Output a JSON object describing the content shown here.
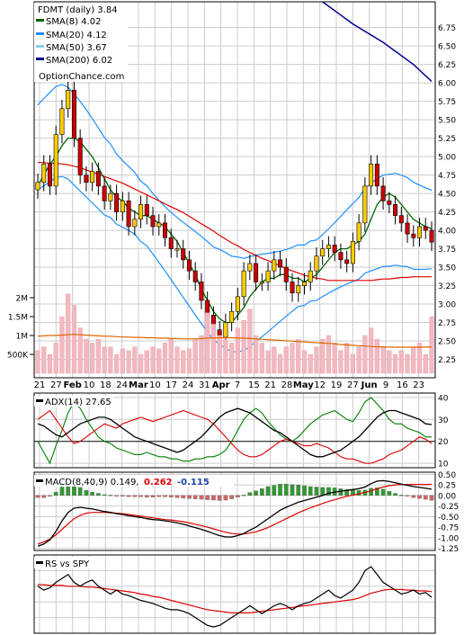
{
  "chart_data": {
    "type": "line",
    "title": "FDMT (daily) 3.84",
    "watermark": "OptionChance.com",
    "x_ticks": [
      "21",
      "27",
      "Feb",
      "10",
      "18",
      "24",
      "Mar",
      "10",
      "17",
      "24",
      "31",
      "Apr",
      "7",
      "15",
      "21",
      "28",
      "May",
      "12",
      "19",
      "27",
      "Jun",
      "9",
      "16",
      "23"
    ],
    "bold_ticks": [
      "Feb",
      "Mar",
      "Apr",
      "May",
      "Jun"
    ],
    "price_panel": {
      "ylim": [
        2.0,
        7.1
      ],
      "y_ticks": [
        "6.75",
        "6.50",
        "6.25",
        "6.00",
        "5.75",
        "5.50",
        "5.25",
        "5.00",
        "4.75",
        "4.50",
        "4.25",
        "4.00",
        "3.75",
        "3.50",
        "3.25",
        "3.00",
        "2.75",
        "2.50",
        "2.25"
      ],
      "legend": [
        {
          "label": "SMA(8)",
          "value": "4.02",
          "color": "#006400"
        },
        {
          "label": "SMA(20)",
          "value": "4.12",
          "color": "#1e90ff"
        },
        {
          "label": "SMA(50)",
          "value": "3.67",
          "color": "#87ceeb"
        },
        {
          "label": "SMA(200)",
          "value": "6.02",
          "color": "#00008b"
        }
      ],
      "close_points": [
        4.65,
        4.9,
        4.6,
        5.3,
        5.65,
        5.9,
        5.25,
        4.75,
        4.65,
        4.8,
        4.6,
        4.4,
        4.5,
        4.25,
        4.4,
        4.05,
        4.15,
        4.35,
        4.2,
        4.05,
        4.1,
        3.9,
        3.75,
        3.75,
        3.6,
        3.45,
        3.3,
        3.05,
        2.85,
        2.65,
        2.55,
        2.75,
        2.9,
        3.1,
        3.45,
        3.55,
        3.3,
        3.3,
        3.45,
        3.6,
        3.5,
        3.3,
        3.15,
        3.25,
        3.3,
        3.45,
        3.65,
        3.75,
        3.8,
        3.7,
        3.6,
        3.55,
        3.85,
        4.1,
        4.6,
        4.9,
        4.6,
        4.4,
        4.35,
        4.2,
        4.1,
        3.95,
        3.9,
        4.05,
        4.0,
        3.84
      ],
      "sma8": [
        4.6,
        4.75,
        4.9,
        5.0,
        5.15,
        5.25,
        5.25,
        5.2,
        5.1,
        5.0,
        4.85,
        4.7,
        4.55,
        4.45,
        4.4,
        4.3,
        4.25,
        4.2,
        4.2,
        4.15,
        4.1,
        4.05,
        3.95,
        3.85,
        3.7,
        3.55,
        3.4,
        3.2,
        3.05,
        2.9,
        2.8,
        2.75,
        2.75,
        2.85,
        2.95,
        3.1,
        3.2,
        3.3,
        3.35,
        3.35,
        3.4,
        3.4,
        3.35,
        3.35,
        3.3,
        3.35,
        3.4,
        3.5,
        3.6,
        3.7,
        3.75,
        3.75,
        3.8,
        3.85,
        3.95,
        4.15,
        4.35,
        4.45,
        4.5,
        4.45,
        4.35,
        4.25,
        4.15,
        4.1,
        4.05,
        4.02
      ],
      "sma20": [
        5.2,
        5.25,
        5.3,
        5.35,
        5.35,
        5.3,
        5.2,
        5.1,
        5.0,
        4.9,
        4.8,
        4.7,
        4.65,
        4.55,
        4.5,
        4.45,
        4.4,
        4.3,
        4.25,
        4.15,
        4.05,
        3.95,
        3.85,
        3.75,
        3.65,
        3.55,
        3.45,
        3.35,
        3.25,
        3.15,
        3.1,
        3.05,
        3.0,
        3.0,
        3.0,
        3.05,
        3.1,
        3.15,
        3.2,
        3.25,
        3.3,
        3.35,
        3.4,
        3.45,
        3.45,
        3.5,
        3.5,
        3.55,
        3.6,
        3.65,
        3.7,
        3.75,
        3.8,
        3.85,
        3.95,
        4.0,
        4.05,
        4.1,
        4.12,
        4.15,
        4.15,
        4.15,
        4.12,
        4.12,
        4.12,
        4.12
      ],
      "sma50": [
        3.92,
        3.94,
        3.95,
        3.97,
        3.98,
        3.99,
        3.99,
        3.99,
        3.98,
        3.97,
        3.96,
        3.95,
        3.94,
        3.93,
        3.92,
        3.9,
        3.88,
        3.86,
        3.84,
        3.82,
        3.8,
        3.78,
        3.76,
        3.74,
        3.72,
        3.69,
        3.66,
        3.63,
        3.6,
        3.57,
        3.53,
        3.5,
        3.47,
        3.45,
        3.42,
        3.4,
        3.38,
        3.36,
        3.35,
        3.33,
        3.32,
        3.3,
        3.29,
        3.28,
        3.27,
        3.27,
        3.27,
        3.28,
        3.28,
        3.3,
        3.32,
        3.34,
        3.36,
        3.38,
        3.4,
        3.42,
        3.45,
        3.48,
        3.5,
        3.53,
        3.56,
        3.58,
        3.61,
        3.63,
        3.65,
        3.67
      ],
      "sma200": [
        {
          "i": 47,
          "v": 7.1
        },
        {
          "i": 52,
          "v": 6.8
        },
        {
          "i": 57,
          "v": 6.55
        },
        {
          "i": 62,
          "v": 6.25
        },
        {
          "i": 65,
          "v": 6.02
        }
      ]
    },
    "volume_panel": {
      "y_ticks": [
        "2M",
        "1.5M",
        "1M",
        "500K"
      ],
      "tick_values": [
        2000000,
        1500000,
        1000000,
        500000
      ],
      "ylim": [
        0,
        2500000
      ],
      "values": [
        600000,
        700000,
        500000,
        800000,
        1500000,
        2100000,
        1800000,
        1200000,
        900000,
        800000,
        900000,
        700000,
        700000,
        500000,
        650000,
        600000,
        700000,
        500000,
        600000,
        700000,
        650000,
        800000,
        900000,
        700000,
        600000,
        650000,
        900000,
        1000000,
        1600000,
        1300000,
        1000000,
        900000,
        800000,
        1200000,
        1400000,
        1700000,
        1000000,
        800000,
        600000,
        700000,
        500000,
        700000,
        800000,
        900000,
        600000,
        500000,
        700000,
        900000,
        1000000,
        800000,
        600000,
        800000,
        500000,
        700000,
        1000000,
        1200000,
        900000,
        700000,
        600000,
        500000,
        600000,
        500000,
        700000,
        800000,
        500000,
        1500000
      ],
      "avg": [
        980000,
        990000,
        1000000,
        1000000,
        1010000,
        1020000,
        1030000,
        1020000,
        1010000,
        1000000,
        990000,
        980000,
        980000,
        970000,
        960000,
        960000,
        950000,
        950000,
        940000,
        940000,
        930000,
        930000,
        920000,
        920000,
        910000,
        910000,
        910000,
        920000,
        930000,
        930000,
        940000,
        940000,
        940000,
        930000,
        930000,
        920000,
        910000,
        900000,
        890000,
        880000,
        870000,
        860000,
        850000,
        840000,
        830000,
        820000,
        810000,
        800000,
        790000,
        780000,
        760000,
        750000,
        740000,
        730000,
        720000,
        710000,
        700000,
        700000,
        690000,
        690000,
        690000,
        690000,
        690000,
        690000,
        690000,
        700000
      ]
    },
    "adx_panel": {
      "label": "ADX(14) 27.65",
      "ylim": [
        8,
        42
      ],
      "y_ticks": [
        "40",
        "30",
        "20",
        "10"
      ],
      "adx": [
        28,
        27,
        25,
        23,
        22,
        24,
        26,
        28,
        29,
        30,
        31,
        31,
        30,
        28,
        26,
        24,
        22,
        21,
        20,
        19,
        18,
        17,
        16,
        15,
        16,
        18,
        20,
        22,
        25,
        28,
        31,
        33,
        34,
        35,
        34,
        33,
        31,
        29,
        27,
        25,
        24,
        22,
        20,
        18,
        16,
        14,
        13,
        13,
        14,
        15,
        16,
        18,
        20,
        22,
        25,
        28,
        31,
        33,
        34,
        34,
        33,
        32,
        31,
        30,
        28,
        27.65
      ],
      "plus_di": [
        20,
        15,
        10,
        18,
        25,
        33,
        38,
        35,
        30,
        26,
        22,
        20,
        19,
        17,
        16,
        15,
        14,
        14,
        15,
        14,
        13,
        13,
        12,
        12,
        11,
        11,
        12,
        12,
        13,
        13,
        14,
        16,
        20,
        25,
        30,
        33,
        35,
        33,
        29,
        26,
        23,
        21,
        20,
        22,
        25,
        28,
        30,
        32,
        33,
        34,
        32,
        30,
        29,
        33,
        38,
        40,
        37,
        34,
        30,
        28,
        28,
        26,
        25,
        24,
        22,
        22
      ],
      "minus_di": [
        30,
        32,
        34,
        30,
        26,
        22,
        19,
        20,
        22,
        24,
        26,
        28,
        27,
        26,
        28,
        29,
        30,
        31,
        30,
        29,
        30,
        31,
        32,
        33,
        34,
        33,
        32,
        31,
        30,
        28,
        25,
        22,
        19,
        16,
        14,
        13,
        13,
        14,
        16,
        18,
        20,
        21,
        20,
        19,
        18,
        18,
        19,
        18,
        17,
        15,
        13,
        12,
        12,
        11,
        10,
        10,
        11,
        12,
        14,
        15,
        16,
        18,
        20,
        22,
        21,
        19
      ]
    },
    "macd_panel": {
      "label": "MACD(8,40,9)",
      "macd_value": "0.149,",
      "signal_value": "0.262",
      "hist_value": "-0.115",
      "ylim": [
        -1.3,
        0.55
      ],
      "y_ticks": [
        "0.50",
        "0.25",
        "0.00",
        "-0.25",
        "-0.50",
        "-0.75",
        "-1.00",
        "-1.25"
      ],
      "tick_values": [
        0.5,
        0.25,
        0.0,
        -0.25,
        -0.5,
        -0.75,
        -1.0,
        -1.25
      ],
      "macd": [
        -1.2,
        -1.15,
        -1.05,
        -0.85,
        -0.6,
        -0.4,
        -0.3,
        -0.28,
        -0.3,
        -0.32,
        -0.35,
        -0.38,
        -0.4,
        -0.43,
        -0.45,
        -0.48,
        -0.5,
        -0.52,
        -0.55,
        -0.57,
        -0.58,
        -0.6,
        -0.62,
        -0.65,
        -0.68,
        -0.72,
        -0.76,
        -0.8,
        -0.85,
        -0.9,
        -0.95,
        -0.98,
        -0.98,
        -0.95,
        -0.9,
        -0.82,
        -0.75,
        -0.65,
        -0.55,
        -0.45,
        -0.35,
        -0.28,
        -0.22,
        -0.16,
        -0.12,
        -0.08,
        -0.04,
        0.0,
        0.05,
        0.08,
        0.1,
        0.12,
        0.14,
        0.16,
        0.2,
        0.28,
        0.34,
        0.35,
        0.33,
        0.3,
        0.27,
        0.24,
        0.21,
        0.19,
        0.17,
        0.149
      ],
      "signal": [
        -1.15,
        -1.1,
        -1.03,
        -0.93,
        -0.8,
        -0.67,
        -0.55,
        -0.47,
        -0.42,
        -0.4,
        -0.4,
        -0.4,
        -0.41,
        -0.42,
        -0.43,
        -0.45,
        -0.47,
        -0.49,
        -0.51,
        -0.53,
        -0.55,
        -0.57,
        -0.58,
        -0.6,
        -0.62,
        -0.65,
        -0.68,
        -0.71,
        -0.75,
        -0.79,
        -0.83,
        -0.87,
        -0.9,
        -0.91,
        -0.91,
        -0.89,
        -0.86,
        -0.81,
        -0.76,
        -0.69,
        -0.62,
        -0.55,
        -0.48,
        -0.41,
        -0.35,
        -0.29,
        -0.24,
        -0.19,
        -0.14,
        -0.1,
        -0.06,
        -0.02,
        0.01,
        0.04,
        0.07,
        0.11,
        0.16,
        0.2,
        0.23,
        0.25,
        0.26,
        0.26,
        0.26,
        0.26,
        0.26,
        0.262
      ],
      "hist": [
        -0.05,
        -0.05,
        -0.02,
        0.08,
        0.2,
        0.27,
        0.25,
        0.19,
        0.12,
        0.08,
        0.05,
        0.02,
        0.01,
        -0.01,
        -0.02,
        -0.03,
        -0.03,
        -0.03,
        -0.04,
        -0.04,
        -0.03,
        -0.03,
        -0.04,
        -0.05,
        -0.06,
        -0.07,
        -0.08,
        -0.09,
        -0.1,
        -0.11,
        -0.12,
        -0.11,
        -0.08,
        -0.04,
        0.01,
        0.07,
        0.11,
        0.16,
        0.21,
        0.24,
        0.27,
        0.27,
        0.26,
        0.25,
        0.23,
        0.21,
        0.2,
        0.19,
        0.19,
        0.18,
        0.16,
        0.14,
        0.13,
        0.12,
        0.13,
        0.17,
        0.18,
        0.15,
        0.1,
        0.05,
        0.01,
        -0.02,
        -0.05,
        -0.07,
        -0.09,
        -0.115
      ]
    },
    "rs_panel": {
      "label": "RS vs SPY",
      "ylim": [
        0,
        10
      ],
      "rs": [
        6.0,
        5.5,
        5.8,
        6.5,
        7.0,
        7.5,
        6.5,
        6.0,
        6.5,
        6.8,
        6.0,
        5.5,
        5.0,
        5.5,
        5.0,
        4.8,
        4.5,
        4.2,
        4.0,
        3.8,
        3.5,
        3.2,
        3.0,
        3.0,
        2.8,
        2.5,
        2.0,
        1.5,
        1.0,
        0.8,
        1.0,
        1.5,
        2.0,
        2.5,
        3.0,
        3.5,
        3.0,
        2.5,
        3.0,
        3.5,
        3.8,
        3.5,
        3.0,
        3.5,
        3.8,
        4.0,
        4.5,
        5.0,
        5.5,
        4.8,
        4.5,
        5.0,
        5.5,
        6.5,
        8.0,
        8.5,
        7.5,
        6.5,
        6.0,
        5.5,
        5.0,
        5.2,
        5.5,
        5.0,
        5.2,
        4.6
      ],
      "rs_avg": [
        6.2,
        6.2,
        6.1,
        6.1,
        6.1,
        6.0,
        6.0,
        6.0,
        5.9,
        5.9,
        5.8,
        5.7,
        5.6,
        5.5,
        5.4,
        5.3,
        5.2,
        5.0,
        4.9,
        4.7,
        4.6,
        4.4,
        4.2,
        4.0,
        3.8,
        3.6,
        3.4,
        3.2,
        3.0,
        2.9,
        2.8,
        2.7,
        2.6,
        2.6,
        2.6,
        2.6,
        2.7,
        2.8,
        2.9,
        3.0,
        3.1,
        3.2,
        3.3,
        3.4,
        3.5,
        3.6,
        3.7,
        3.8,
        3.9,
        4.0,
        4.1,
        4.2,
        4.3,
        4.5,
        4.8,
        5.1,
        5.3,
        5.5,
        5.6,
        5.6,
        5.6,
        5.5,
        5.5,
        5.4,
        5.4,
        5.3
      ]
    }
  },
  "colors": {
    "sma8": "#006400",
    "sma20": "#1e90ff",
    "sma50": "#87ceeb",
    "sma200": "#00008b",
    "ema_red": "#dd0000",
    "bb": "#1e90ff",
    "up": "#ffcc00",
    "down": "#cc0000",
    "vol": "#f4b8c0",
    "vol_avg": "#dd6600",
    "adx": "#000000",
    "plus_di": "#008000",
    "minus_di": "#dd0000",
    "macd": "#000000",
    "signal": "#dd0000",
    "hist_pos": "#339933",
    "hist_neg": "#cc6666",
    "macd_red_text": "#dd0000",
    "macd_blue_text": "#1e44aa"
  }
}
